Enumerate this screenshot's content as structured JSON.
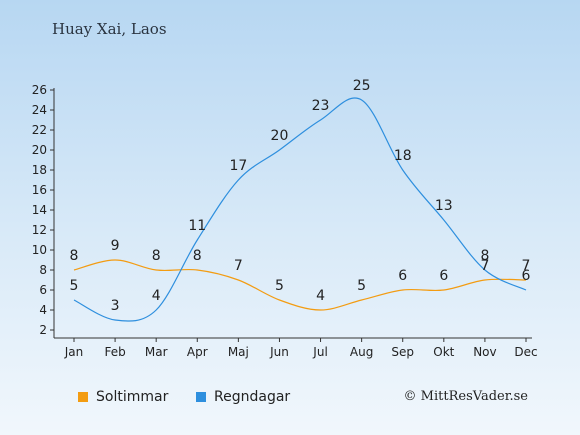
{
  "title": "Huay Xai, Laos",
  "copyright": "© MittResVader.se",
  "chart_data": {
    "type": "line",
    "categories": [
      "Jan",
      "Feb",
      "Mar",
      "Apr",
      "Maj",
      "Jun",
      "Jul",
      "Aug",
      "Sep",
      "Okt",
      "Nov",
      "Dec"
    ],
    "ylim": [
      2,
      26
    ],
    "yticks": [
      2,
      4,
      6,
      8,
      10,
      12,
      14,
      16,
      18,
      20,
      22,
      24,
      26
    ],
    "grid": false,
    "legend_position": "bottom-left",
    "series": [
      {
        "name": "Soltimmar",
        "color": "#f39c12",
        "values": [
          8,
          9,
          8,
          8,
          7,
          5,
          4,
          5,
          6,
          6,
          7,
          7
        ]
      },
      {
        "name": "Regndagar",
        "color": "#2e8fde",
        "values": [
          5,
          3,
          4,
          11,
          17,
          20,
          23,
          25,
          18,
          13,
          8,
          6
        ]
      }
    ]
  }
}
